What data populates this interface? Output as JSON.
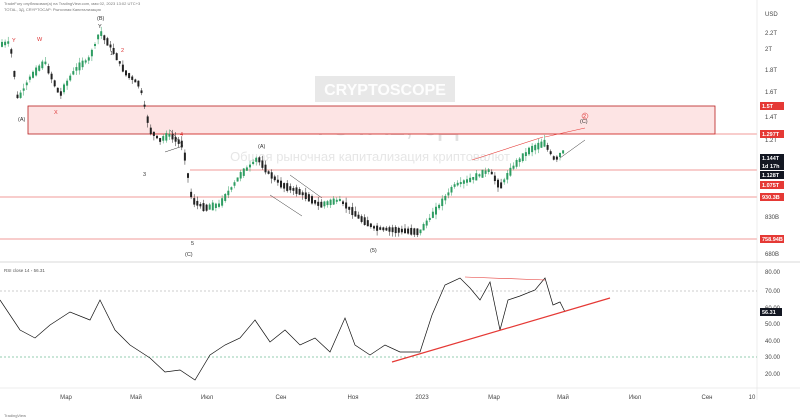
{
  "header": {
    "line1": "TradeFury опубликовал(а) на TradingView.com, мая 02, 2023 13:02 UTC+3",
    "line2": "TOTAL, 3Д, CRYPTOCAP: Рыночная Капитализация"
  },
  "watermark": {
    "brand": "CRYPTOSCOPE",
    "ticker": "TOTAL, 3Д",
    "subtitle": "Общая рыночная капитализация криптовалют"
  },
  "currency_label": "USD",
  "price_axis_ticks": [
    "2.2T",
    "2T",
    "1.8T",
    "1.6T",
    "1.4T",
    "1.2T",
    "830B",
    "680B"
  ],
  "price_tags": [
    {
      "label": "1.5T",
      "color": "#e53935"
    },
    {
      "label": "1.297T",
      "color": "#e53935"
    },
    {
      "label": "1.144T",
      "color": "#131722"
    },
    {
      "label": "1d 17h",
      "color": "#131722"
    },
    {
      "label": "1.128T",
      "color": "#131722"
    },
    {
      "label": "1.075T",
      "color": "#e53935"
    },
    {
      "label": "930.3B",
      "color": "#e53935"
    },
    {
      "label": "758.94B",
      "color": "#e53935"
    }
  ],
  "rsi": {
    "label": "RSI close 14 ◦ 56.31",
    "ticks": [
      "80.00",
      "70.00",
      "60.00",
      "50.00",
      "40.00",
      "30.00",
      "20.00",
      "10.00"
    ],
    "current": "56.31"
  },
  "time_axis": [
    "Мар",
    "Май",
    "Июл",
    "Сен",
    "Ноя",
    "2023",
    "Мар",
    "Май",
    "Июл",
    "Сен",
    "10"
  ],
  "wave_labels": {
    "B": "(B)",
    "A_left": "(A)",
    "A_mid": "(A)",
    "C_left": "(C)",
    "C_right": "(C)",
    "five_paren": "(5)",
    "one": "1",
    "two": "2",
    "three": "3",
    "four": "4",
    "five": "5",
    "w": "W",
    "x": "X",
    "y": "Y",
    "Y_red": "Y",
    "two_circle": "2"
  },
  "footer": "TradingView",
  "chart_data": {
    "type": "line",
    "series": [
      {
        "name": "TOTAL",
        "x": [
          "Мар",
          "Май",
          "Июл",
          "Сен",
          "Ноя",
          "2023",
          "Мар",
          "Май"
        ],
        "values": [
          1.9,
          1.2,
          0.95,
          1.0,
          0.85,
          0.78,
          1.05,
          1.144
        ]
      },
      {
        "name": "RSI",
        "x": [
          "Мар",
          "Май",
          "Июл",
          "Сен",
          "Ноя",
          "2023",
          "Мар",
          "Май"
        ],
        "values": [
          45,
          55,
          25,
          50,
          45,
          33,
          75,
          56.31
        ]
      }
    ],
    "ylim_price": [
      "680B",
      "2.2T"
    ],
    "ylim_rsi": [
      10,
      80
    ]
  },
  "colors": {
    "up": "#2e9d62",
    "down": "#222222",
    "resistance": "#e53935",
    "zone_fill": "#fde4e4",
    "rsi_line": "#111111",
    "trend": "#e53935"
  }
}
